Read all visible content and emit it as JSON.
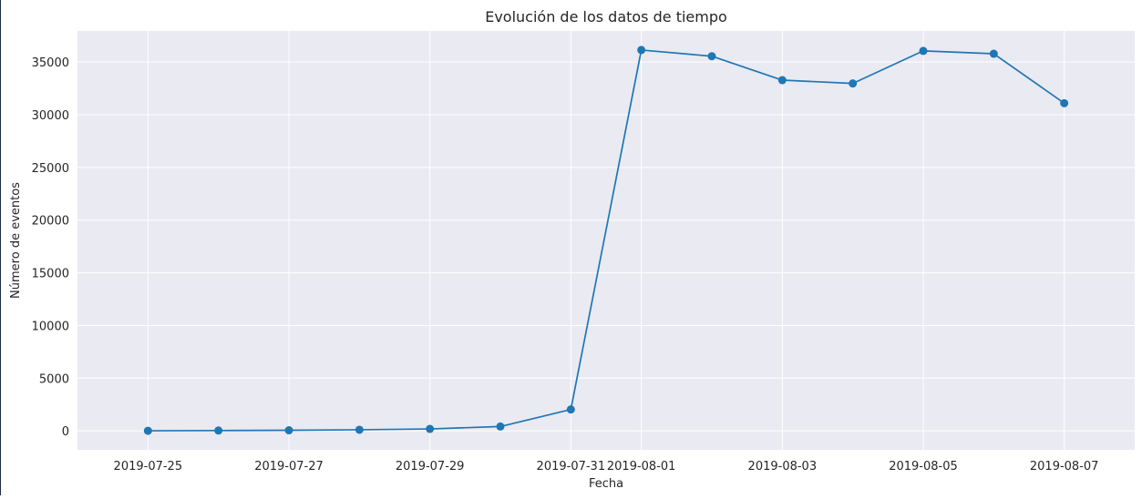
{
  "chart_data": {
    "type": "line",
    "title": "Evolución de los datos de tiempo",
    "xlabel": "Fecha",
    "ylabel": "Número de eventos",
    "x": [
      "2019-07-25",
      "2019-07-26",
      "2019-07-27",
      "2019-07-28",
      "2019-07-29",
      "2019-07-30",
      "2019-07-31",
      "2019-08-01",
      "2019-08-02",
      "2019-08-03",
      "2019-08-04",
      "2019-08-05",
      "2019-08-06",
      "2019-08-07"
    ],
    "series": [
      {
        "values": [
          9,
          31,
          55,
          105,
          184,
          413,
          2030,
          36141,
          35554,
          33282,
          32968,
          36058,
          35788,
          31096
        ],
        "color": "#1f77b4",
        "marker": "circle"
      }
    ],
    "xticks": [
      "2019-07-25",
      "2019-07-27",
      "2019-07-29",
      "2019-07-31",
      "2019-08-01",
      "2019-08-03",
      "2019-08-05",
      "2019-08-07"
    ],
    "yticks": [
      0,
      5000,
      10000,
      15000,
      20000,
      25000,
      30000,
      35000
    ],
    "xlim": [
      "2019-07-24",
      "2019-08-08"
    ],
    "ylim": [
      -1800,
      37950
    ],
    "grid": true,
    "background_color": "#eaeaf2",
    "grid_color": "#ffffff",
    "legend": "none"
  }
}
